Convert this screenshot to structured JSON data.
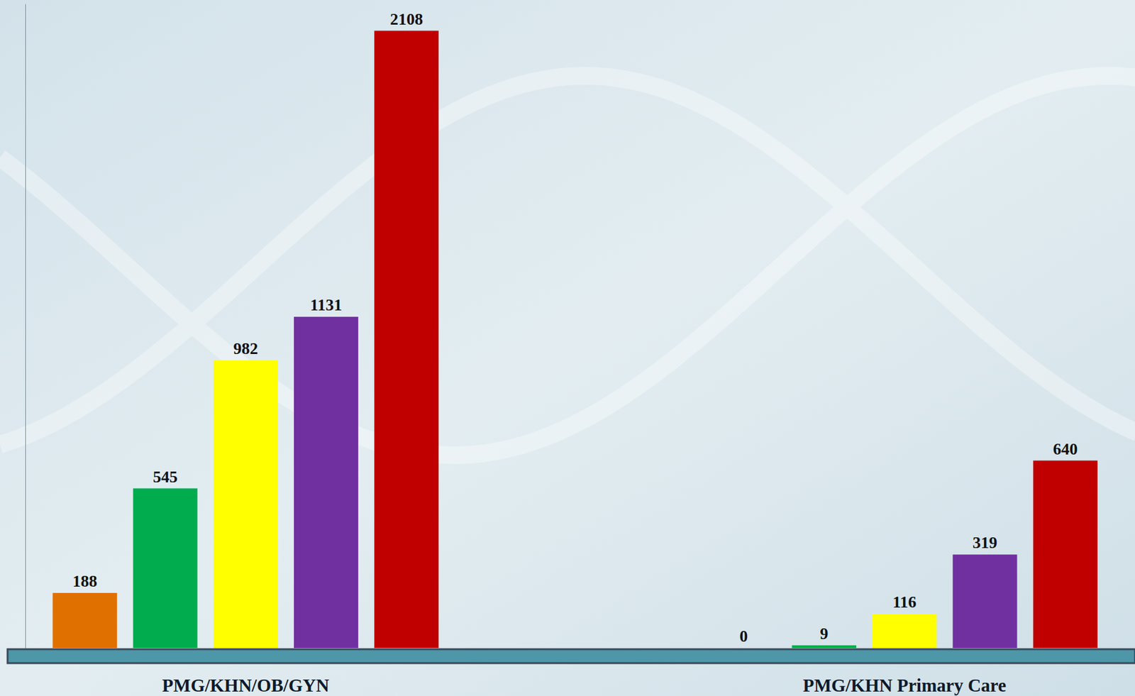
{
  "chart_data": {
    "type": "bar",
    "categories": [
      "PMG/KHN/OB/GYN",
      "PMG/KHN Primary Care"
    ],
    "series": [
      {
        "color": "#e07000",
        "values": [
          188,
          0
        ]
      },
      {
        "color": "#00ac4e",
        "values": [
          545,
          9
        ]
      },
      {
        "color": "#ffff00",
        "values": [
          982,
          116
        ]
      },
      {
        "color": "#7030a0",
        "values": [
          1131,
          319
        ]
      },
      {
        "color": "#c00000",
        "values": [
          2108,
          640
        ]
      }
    ],
    "ylim": [
      0,
      2200
    ],
    "data_labels": true,
    "tick_labels": "x"
  }
}
